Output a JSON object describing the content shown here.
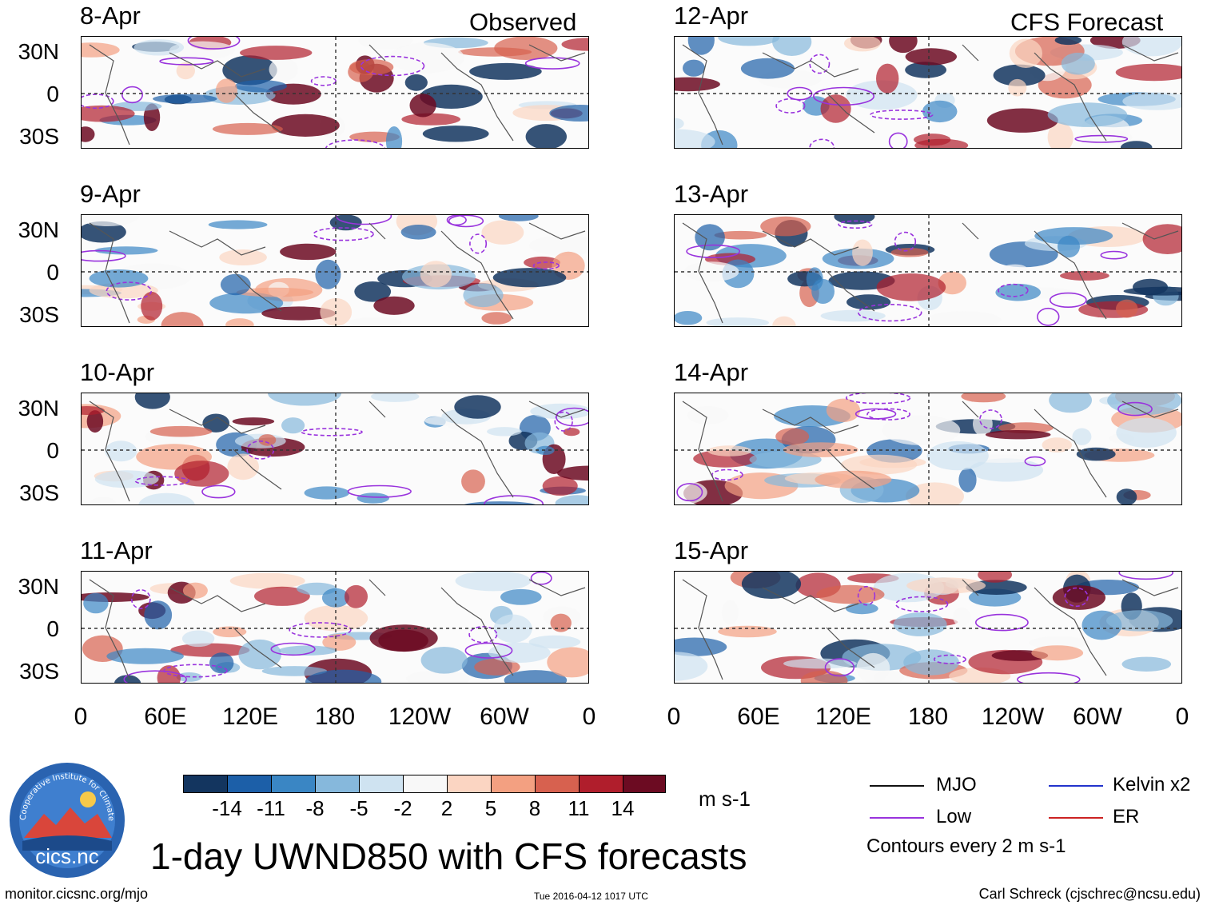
{
  "header": {
    "left_label": "Observed",
    "right_label": "CFS Forecast"
  },
  "panels_left": [
    {
      "date": "8-Apr"
    },
    {
      "date": "9-Apr"
    },
    {
      "date": "10-Apr"
    },
    {
      "date": "11-Apr"
    }
  ],
  "panels_right": [
    {
      "date": "12-Apr"
    },
    {
      "date": "13-Apr"
    },
    {
      "date": "14-Apr"
    },
    {
      "date": "15-Apr"
    }
  ],
  "lat_ticks": [
    "30N",
    "0",
    "30S"
  ],
  "lon_ticks": [
    "0",
    "60E",
    "120E",
    "180",
    "120W",
    "60W",
    "0"
  ],
  "colorbar": {
    "labels": [
      "-14",
      "-11",
      "-8",
      "-5",
      "-2",
      "2",
      "5",
      "8",
      "11",
      "14"
    ],
    "colors": [
      "#13355f",
      "#1c5fa8",
      "#3a86c4",
      "#86b8dc",
      "#cfe3f1",
      "#f8f8f8",
      "#fbd5c2",
      "#f3a081",
      "#d7614f",
      "#b01e2c",
      "#6c0b22"
    ],
    "unit": "m s-1"
  },
  "legend": {
    "items": [
      {
        "label": "MJO",
        "color": "#111111"
      },
      {
        "label": "Kelvin x2",
        "color": "#2233cc"
      },
      {
        "label": "Low",
        "color": "#9933dd"
      },
      {
        "label": "ER",
        "color": "#cc2222"
      }
    ],
    "note": "Contours every 2 m s-1"
  },
  "title": "1-day UWND850 with CFS forecasts",
  "logo": {
    "text": "cics.nc",
    "ring_text": "Cooperative Institute for Climate and Satellites"
  },
  "footer": {
    "url": "monitor.cicsnc.org/mjo",
    "timestamp": "Tue 2016-04-12 1017 UTC",
    "author": "Carl Schreck (cjschrec@ncsu.edu)"
  }
}
